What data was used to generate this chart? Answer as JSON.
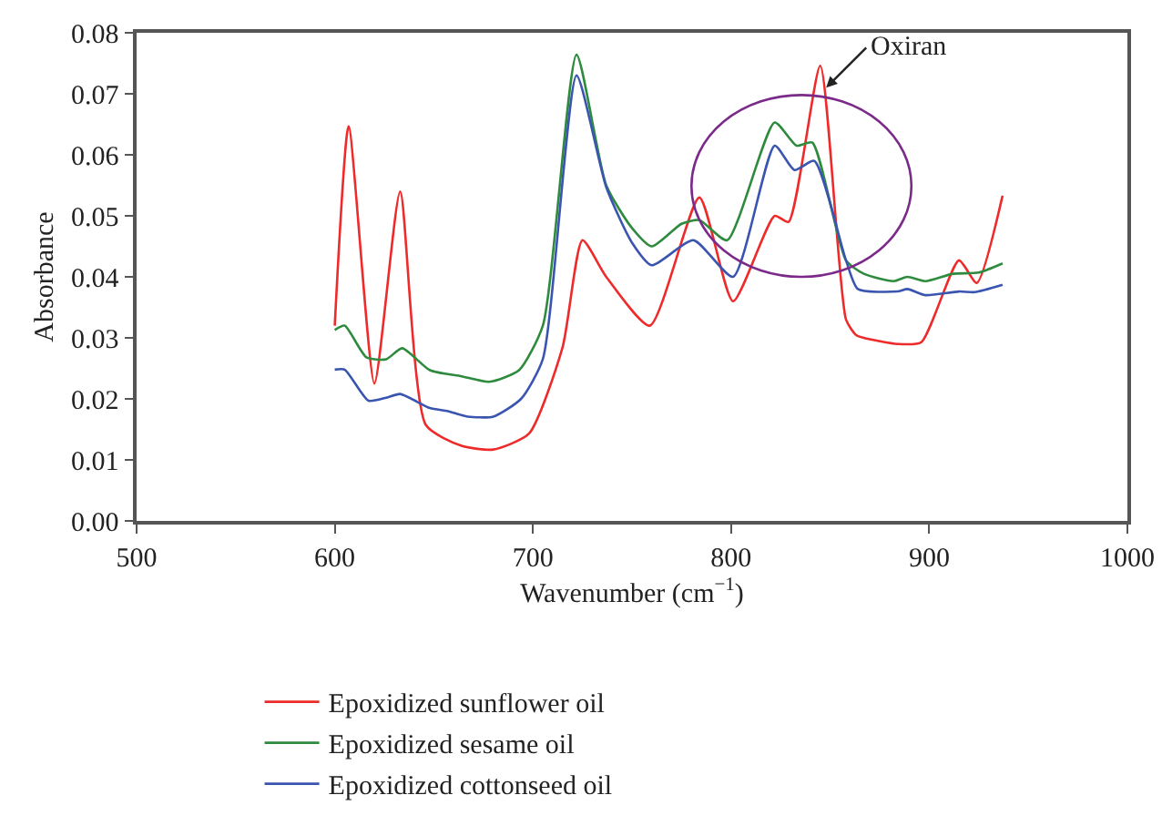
{
  "chart_data": {
    "type": "line",
    "xlabel": "Wavenumber (cm$^{−1}$)",
    "ylabel": "Absorbance",
    "xlim": [
      500,
      1000
    ],
    "xticks": [
      500,
      600,
      700,
      800,
      900,
      1000
    ],
    "ylim": [
      0,
      0.08
    ],
    "yticks": [
      {
        "value": 0,
        "label": "0.00"
      },
      0.01,
      0.02,
      0.03,
      0.04,
      0.05,
      0.06,
      0.07,
      0.08
    ],
    "grid": false,
    "legend": "bottom",
    "marker": "none",
    "line_style": "solid",
    "annotations": [
      {
        "text": "Oxiran",
        "x": 848,
        "y": 0.071
      }
    ],
    "series": [
      {
        "name": "Epoxidized sunflower oil",
        "color": "#ee2a2a",
        "x": [
          600,
          607,
          620,
          633,
          646,
          664,
          680,
          698,
          715,
          725,
          737,
          759,
          784,
          801,
          822,
          829,
          845,
          858,
          863,
          867,
          884,
          896,
          915,
          924,
          937
        ],
        "values": [
          0.032,
          0.0647,
          0.0225,
          0.054,
          0.0157,
          0.0123,
          0.0117,
          0.0143,
          0.0285,
          0.046,
          0.04,
          0.032,
          0.053,
          0.036,
          0.05,
          0.049,
          0.0746,
          0.033,
          0.0305,
          0.03,
          0.029,
          0.0293,
          0.0427,
          0.039,
          0.0533
        ]
      },
      {
        "name": "Epoxidized sesame oil",
        "color": "#2e8b3e",
        "x": [
          600,
          605,
          616,
          626,
          634,
          648,
          664,
          678,
          693,
          705,
          722,
          737,
          750,
          760,
          775,
          784,
          798,
          822,
          833,
          841,
          858,
          867,
          882,
          889,
          898,
          912,
          925,
          937
        ],
        "values": [
          0.0313,
          0.032,
          0.0268,
          0.0265,
          0.0283,
          0.0247,
          0.0237,
          0.0228,
          0.0247,
          0.032,
          0.0764,
          0.055,
          0.048,
          0.045,
          0.0487,
          0.0493,
          0.046,
          0.0653,
          0.0615,
          0.062,
          0.0427,
          0.0405,
          0.0393,
          0.04,
          0.0393,
          0.0405,
          0.0407,
          0.0422
        ]
      },
      {
        "name": "Epoxidized cottonseed oil",
        "color": "#3a55b0",
        "x": [
          600,
          605,
          617,
          626,
          633,
          648,
          657,
          667,
          680,
          694,
          705,
          722,
          737,
          750,
          760,
          781,
          801,
          822,
          832,
          842,
          858,
          864,
          884,
          889,
          898,
          915,
          923,
          937
        ],
        "values": [
          0.0248,
          0.0248,
          0.0197,
          0.0202,
          0.0208,
          0.0185,
          0.018,
          0.0171,
          0.0171,
          0.02,
          0.0265,
          0.073,
          0.0547,
          0.0456,
          0.0419,
          0.046,
          0.04,
          0.0615,
          0.0575,
          0.059,
          0.0427,
          0.038,
          0.0376,
          0.038,
          0.037,
          0.0376,
          0.0375,
          0.0387
        ]
      }
    ]
  }
}
